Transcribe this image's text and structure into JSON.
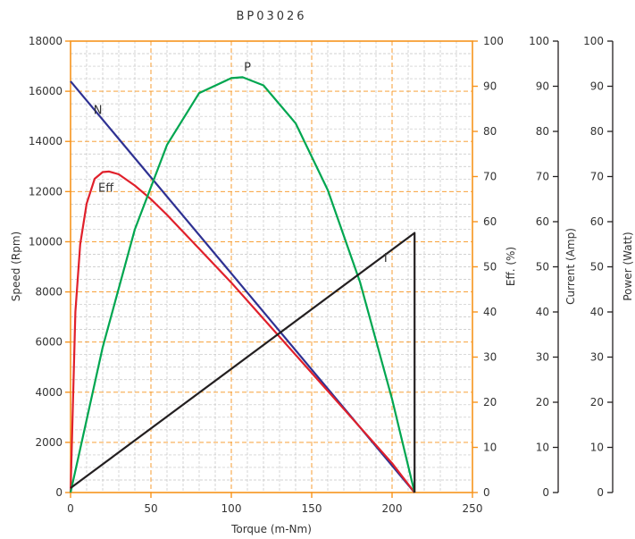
{
  "chart_data": {
    "type": "line",
    "title": "BP03026",
    "xlabel": "Torque (m-Nm)",
    "xlim": [
      0,
      250
    ],
    "x_ticks": [
      0,
      50,
      100,
      150,
      200,
      250
    ],
    "y_axes": [
      {
        "id": "speed",
        "label": "Speed (Rpm)",
        "lim": [
          0,
          18000
        ],
        "ticks": [
          0,
          2000,
          4000,
          6000,
          8000,
          10000,
          12000,
          14000,
          16000,
          18000
        ]
      },
      {
        "id": "eff",
        "label": "Eff. (%)",
        "lim": [
          0,
          100
        ],
        "ticks": [
          0,
          10,
          20,
          30,
          40,
          50,
          60,
          70,
          80,
          90,
          100
        ]
      },
      {
        "id": "current",
        "label": "Current (Amp)",
        "lim": [
          0,
          100
        ],
        "ticks": [
          0,
          10,
          20,
          30,
          40,
          50,
          60,
          70,
          80,
          90,
          100
        ]
      },
      {
        "id": "power",
        "label": "Power (Watt)",
        "lim": [
          0,
          100
        ],
        "ticks": [
          0,
          10,
          20,
          30,
          40,
          50,
          60,
          70,
          80,
          90,
          100
        ]
      }
    ],
    "grid": true,
    "series": [
      {
        "name": "N",
        "axis": "speed",
        "color": "#2e3192",
        "x": [
          0,
          214
        ],
        "y": [
          16400,
          0
        ],
        "label_at": [
          17,
          15100
        ]
      },
      {
        "name": "Eff",
        "axis": "eff",
        "color": "#e0202b",
        "x": [
          0,
          3,
          6,
          10,
          15,
          20,
          24,
          30,
          40,
          50,
          60,
          80,
          100,
          120,
          140,
          160,
          180,
          200,
          214
        ],
        "y": [
          0,
          40,
          55,
          64,
          69.5,
          71,
          71.1,
          70.5,
          68,
          65,
          61.5,
          54,
          46.5,
          38.5,
          30.5,
          22.5,
          14.5,
          6.5,
          0
        ],
        "label_at": [
          22,
          12000
        ]
      },
      {
        "name": "P",
        "axis": "power",
        "color": "#00a650",
        "x": [
          0,
          20,
          40,
          60,
          80,
          100,
          107,
          120,
          140,
          160,
          180,
          200,
          214
        ],
        "y": [
          0,
          32.2,
          58.3,
          77,
          88.5,
          91.8,
          92,
          90.2,
          81.8,
          67,
          46.7,
          20.7,
          0
        ],
        "label_at": [
          110,
          16800
        ]
      },
      {
        "name": "I",
        "axis": "current",
        "color": "#231f20",
        "x": [
          0,
          214,
          214
        ],
        "y": [
          1,
          57.5,
          0
        ],
        "label_at": [
          196,
          9200
        ]
      }
    ]
  }
}
